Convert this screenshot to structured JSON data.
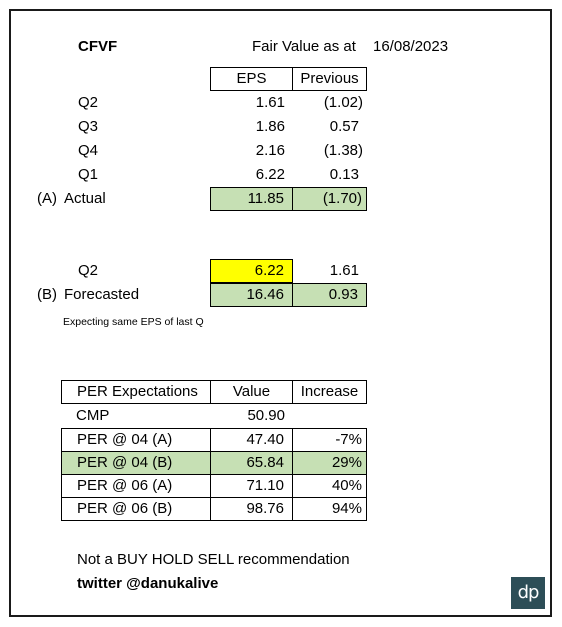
{
  "header": {
    "ticker": "CFVF",
    "fair_value_label": "Fair Value as at",
    "date": "16/08/2023"
  },
  "eps_table": {
    "col_eps": "EPS",
    "col_previous": "Previous",
    "rows": [
      {
        "label": "Q2",
        "eps": "1.61",
        "previous": "(1.02)"
      },
      {
        "label": "Q3",
        "eps": "1.86",
        "previous": "0.57"
      },
      {
        "label": "Q4",
        "eps": "2.16",
        "previous": "(1.38)"
      },
      {
        "label": "Q1",
        "eps": "6.22",
        "previous": "0.13"
      }
    ],
    "actual": {
      "prefix": "(A)",
      "label": "Actual",
      "eps": "11.85",
      "previous": "(1.70)"
    }
  },
  "forecast_table": {
    "q_row": {
      "label": "Q2",
      "eps": "6.22",
      "previous": "1.61"
    },
    "forecast": {
      "prefix": "(B)",
      "label": "Forecasted",
      "eps": "16.46",
      "previous": "0.93"
    },
    "note": "Expecting same EPS of last Q"
  },
  "per_table": {
    "col_label": "PER Expectations",
    "col_value": "Value",
    "col_increase": "Increase",
    "cmp": {
      "label": "CMP",
      "value": "50.90"
    },
    "rows": [
      {
        "label": "PER @ 04 (A)",
        "value": "47.40",
        "increase": "-7%"
      },
      {
        "label": "PER @ 04 (B)",
        "value": "65.84",
        "increase": "29%"
      },
      {
        "label": "PER @ 06 (A)",
        "value": "71.10",
        "increase": "40%"
      },
      {
        "label": "PER @ 06 (B)",
        "value": "98.76",
        "increase": "94%"
      }
    ]
  },
  "footer": {
    "disclaimer": "Not a BUY HOLD SELL recommendation",
    "twitter": "twitter @danukalive",
    "logo_text": "dp"
  },
  "colors": {
    "highlight_green": "#c6e0b4",
    "highlight_yellow": "#ffff00",
    "logo_bg": "#2d4e57"
  }
}
